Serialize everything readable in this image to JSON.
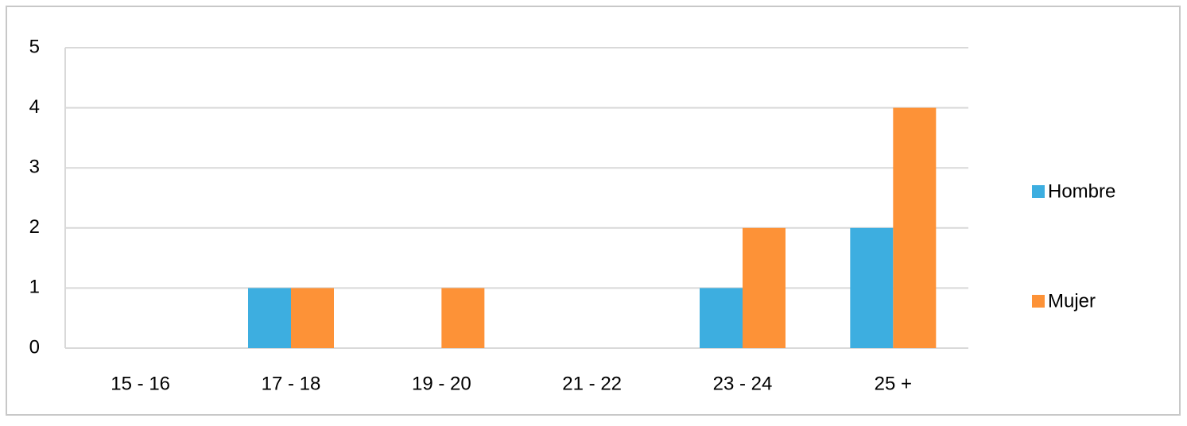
{
  "chart_data": {
    "type": "bar",
    "categories": [
      "15 - 16",
      "17 - 18",
      "19 - 20",
      "21 - 22",
      "23 - 24",
      "25 +"
    ],
    "series": [
      {
        "name": "Hombre",
        "color": "#3daee0",
        "values": [
          0,
          1,
          0,
          0,
          1,
          2
        ]
      },
      {
        "name": "Mujer",
        "color": "#fd9237",
        "values": [
          0,
          1,
          1,
          0,
          2,
          4
        ]
      }
    ],
    "ylim": [
      0,
      5
    ],
    "yticks": [
      0,
      1,
      2,
      3,
      4,
      5
    ],
    "grid": true,
    "legend": "right"
  }
}
